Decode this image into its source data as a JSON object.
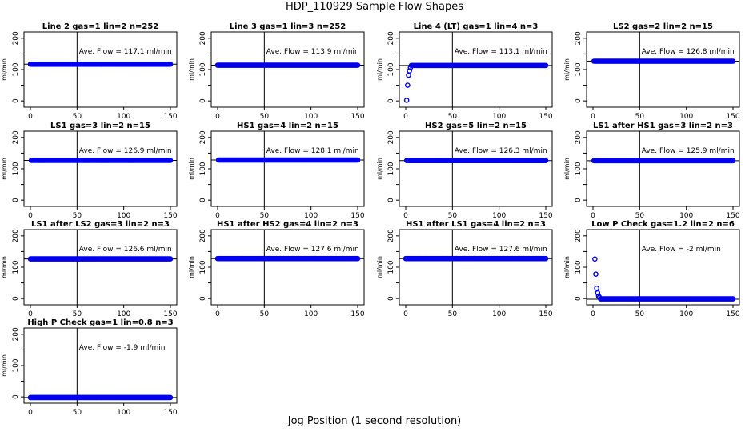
{
  "figure": {
    "title": "HDP_110929  Sample Flow Shapes",
    "xlabel": "Jog Position (1 second resolution)"
  },
  "colors": {
    "points": "#0000ee",
    "axis": "#000000"
  },
  "chart_data": [
    {
      "type": "scatter",
      "title": "Line 2 gas=1 lin=2 n=252",
      "ylabel": "ml/min",
      "xlim": [
        0,
        150
      ],
      "ylim": [
        -20,
        220
      ],
      "xticks": [
        0,
        50,
        100,
        150
      ],
      "yticks": [
        0,
        50,
        100,
        150,
        200
      ],
      "ytick_labels": [
        "0",
        "",
        "100",
        "",
        "200"
      ],
      "annotation": "Ave. Flow =  117.1  ml/min",
      "flow_line": 117.1,
      "vline_x": 50,
      "series": [
        {
          "shape": "flat",
          "x_range": [
            0,
            150
          ],
          "y": 117.1
        }
      ]
    },
    {
      "type": "scatter",
      "title": "Line 3 gas=1 lin=3 n=252",
      "ylabel": "ml/min",
      "xlim": [
        0,
        150
      ],
      "ylim": [
        -20,
        220
      ],
      "xticks": [
        0,
        50,
        100,
        150
      ],
      "yticks": [
        0,
        50,
        100,
        150,
        200
      ],
      "ytick_labels": [
        "0",
        "",
        "100",
        "",
        "200"
      ],
      "annotation": "Ave. Flow =  113.9  ml/min",
      "flow_line": 113.9,
      "vline_x": 50,
      "series": [
        {
          "shape": "flat",
          "x_range": [
            0,
            150
          ],
          "y": 113.9
        }
      ]
    },
    {
      "type": "scatter",
      "title": "Line 4 (LT) gas=1 lin=4 n=3",
      "ylabel": "ml/min",
      "xlim": [
        0,
        150
      ],
      "ylim": [
        -20,
        220
      ],
      "xticks": [
        0,
        50,
        100,
        150
      ],
      "yticks": [
        0,
        50,
        100,
        150,
        200
      ],
      "ytick_labels": [
        "0",
        "",
        "100",
        "",
        "200"
      ],
      "annotation": "Ave. Flow =  113.1  ml/min",
      "flow_line": 113.1,
      "vline_x": 50,
      "series": [
        {
          "shape": "flat",
          "x_range": [
            6,
            150
          ],
          "y": 113.1,
          "extra_points": [
            [
              1,
              2
            ],
            [
              2,
              50
            ],
            [
              3,
              82
            ],
            [
              4,
              96
            ],
            [
              5,
              106
            ]
          ]
        }
      ]
    },
    {
      "type": "scatter",
      "title": "LS2 gas=2 lin=2 n=15",
      "ylabel": "ml/min",
      "xlim": [
        0,
        150
      ],
      "ylim": [
        -20,
        220
      ],
      "xticks": [
        0,
        50,
        100,
        150
      ],
      "yticks": [
        0,
        50,
        100,
        150,
        200
      ],
      "ytick_labels": [
        "0",
        "",
        "100",
        "",
        "200"
      ],
      "annotation": "Ave. Flow =  126.8  ml/min",
      "flow_line": 126.8,
      "vline_x": 50,
      "series": [
        {
          "shape": "flat",
          "x_range": [
            1,
            150
          ],
          "y": 126.8
        }
      ]
    },
    {
      "type": "scatter",
      "title": "LS1 gas=3 lin=2 n=15",
      "ylabel": "ml/min",
      "xlim": [
        0,
        150
      ],
      "ylim": [
        -20,
        220
      ],
      "xticks": [
        0,
        50,
        100,
        150
      ],
      "yticks": [
        0,
        50,
        100,
        150,
        200
      ],
      "ytick_labels": [
        "0",
        "",
        "100",
        "",
        "200"
      ],
      "annotation": "Ave. Flow =  126.9  ml/min",
      "flow_line": 126.9,
      "vline_x": 50,
      "series": [
        {
          "shape": "flat",
          "x_range": [
            1,
            150
          ],
          "y": 126.9
        }
      ]
    },
    {
      "type": "scatter",
      "title": "HS1 gas=4 lin=2 n=15",
      "ylabel": "ml/min",
      "xlim": [
        0,
        150
      ],
      "ylim": [
        -20,
        220
      ],
      "xticks": [
        0,
        50,
        100,
        150
      ],
      "yticks": [
        0,
        50,
        100,
        150,
        200
      ],
      "ytick_labels": [
        "0",
        "",
        "100",
        "",
        "200"
      ],
      "annotation": "Ave. Flow =  128.1  ml/min",
      "flow_line": 128.1,
      "vline_x": 50,
      "series": [
        {
          "shape": "flat",
          "x_range": [
            1,
            150
          ],
          "y": 128.1
        }
      ]
    },
    {
      "type": "scatter",
      "title": "HS2 gas=5 lin=2 n=15",
      "ylabel": "ml/min",
      "xlim": [
        0,
        150
      ],
      "ylim": [
        -20,
        220
      ],
      "xticks": [
        0,
        50,
        100,
        150
      ],
      "yticks": [
        0,
        50,
        100,
        150,
        200
      ],
      "ytick_labels": [
        "0",
        "",
        "100",
        "",
        "200"
      ],
      "annotation": "Ave. Flow =  126.3  ml/min",
      "flow_line": 126.3,
      "vline_x": 50,
      "series": [
        {
          "shape": "flat",
          "x_range": [
            1,
            150
          ],
          "y": 126.3
        }
      ]
    },
    {
      "type": "scatter",
      "title": "LS1 after HS1 gas=3 lin=2 n=3",
      "ylabel": "ml/min",
      "xlim": [
        0,
        150
      ],
      "ylim": [
        -20,
        220
      ],
      "xticks": [
        0,
        50,
        100,
        150
      ],
      "yticks": [
        0,
        50,
        100,
        150,
        200
      ],
      "ytick_labels": [
        "0",
        "",
        "100",
        "",
        "200"
      ],
      "annotation": "Ave. Flow =  125.9  ml/min",
      "flow_line": 125.9,
      "vline_x": 50,
      "series": [
        {
          "shape": "flat",
          "x_range": [
            1,
            150
          ],
          "y": 125.9
        }
      ]
    },
    {
      "type": "scatter",
      "title": "LS1 after LS2 gas=3 lin=2 n=3",
      "ylabel": "ml/min",
      "xlim": [
        0,
        150
      ],
      "ylim": [
        -20,
        220
      ],
      "xticks": [
        0,
        50,
        100,
        150
      ],
      "yticks": [
        0,
        50,
        100,
        150,
        200
      ],
      "ytick_labels": [
        "0",
        "",
        "100",
        "",
        "200"
      ],
      "annotation": "Ave. Flow =  126.6  ml/min",
      "flow_line": 126.6,
      "vline_x": 50,
      "series": [
        {
          "shape": "flat",
          "x_range": [
            0,
            150
          ],
          "y": 126.6
        }
      ]
    },
    {
      "type": "scatter",
      "title": "HS1 after HS2 gas=4 lin=2 n=3",
      "ylabel": "ml/min",
      "xlim": [
        0,
        150
      ],
      "ylim": [
        -20,
        220
      ],
      "xticks": [
        0,
        50,
        100,
        150
      ],
      "yticks": [
        0,
        50,
        100,
        150,
        200
      ],
      "ytick_labels": [
        "0",
        "",
        "100",
        "",
        "200"
      ],
      "annotation": "Ave. Flow =  127.6  ml/min",
      "flow_line": 127.6,
      "vline_x": 50,
      "series": [
        {
          "shape": "flat",
          "x_range": [
            0,
            150
          ],
          "y": 127.6
        }
      ]
    },
    {
      "type": "scatter",
      "title": "HS1 after LS1 gas=4 lin=2 n=3",
      "ylabel": "ml/min",
      "xlim": [
        0,
        150
      ],
      "ylim": [
        -20,
        220
      ],
      "xticks": [
        0,
        50,
        100,
        150
      ],
      "yticks": [
        0,
        50,
        100,
        150,
        200
      ],
      "ytick_labels": [
        "0",
        "",
        "100",
        "",
        "200"
      ],
      "annotation": "Ave. Flow =  127.6  ml/min",
      "flow_line": 127.6,
      "vline_x": 50,
      "series": [
        {
          "shape": "flat",
          "x_range": [
            0,
            150
          ],
          "y": 127.6
        }
      ]
    },
    {
      "type": "scatter",
      "title": "Low P Check gas=1.2 lin=2 n=6",
      "ylabel": "ml/min",
      "xlim": [
        0,
        150
      ],
      "ylim": [
        -20,
        220
      ],
      "xticks": [
        0,
        50,
        100,
        150
      ],
      "yticks": [
        0,
        50,
        100,
        150,
        200
      ],
      "ytick_labels": [
        "0",
        "",
        "100",
        "",
        "200"
      ],
      "annotation": "Ave. Flow =  -2  ml/min",
      "flow_line": -2,
      "vline_x": 50,
      "series": [
        {
          "shape": "flat",
          "x_range": [
            8,
            150
          ],
          "y": -1,
          "extra_points": [
            [
              2,
              126
            ],
            [
              3,
              78
            ],
            [
              4,
              33
            ],
            [
              5,
              18
            ],
            [
              6,
              8
            ],
            [
              7,
              4
            ]
          ]
        }
      ]
    },
    {
      "type": "scatter",
      "title": "High P Check gas=1 lin=0.8 n=3",
      "ylabel": "ml/min",
      "xlim": [
        0,
        150
      ],
      "ylim": [
        -20,
        220
      ],
      "xticks": [
        0,
        50,
        100,
        150
      ],
      "yticks": [
        0,
        50,
        100,
        150,
        200
      ],
      "ytick_labels": [
        "0",
        "",
        "100",
        "",
        "200"
      ],
      "annotation": "Ave. Flow =  -1.9  ml/min",
      "flow_line": -1.9,
      "vline_x": 50,
      "series": [
        {
          "shape": "flat",
          "x_range": [
            0,
            150
          ],
          "y": -1.9
        }
      ]
    }
  ]
}
